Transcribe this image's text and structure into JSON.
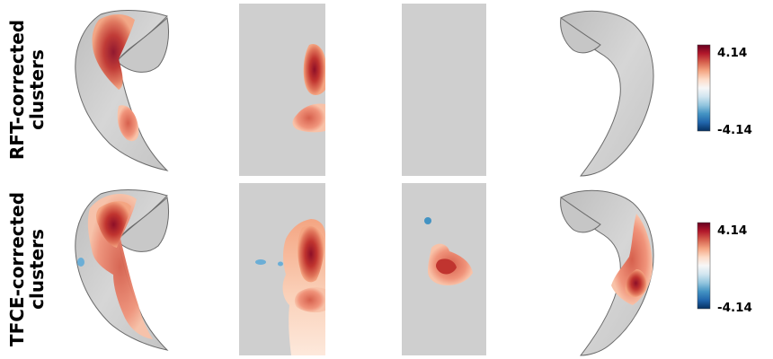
{
  "rows": [
    {
      "label_line1": "RFT-corrected",
      "label_line2": "clusters"
    },
    {
      "label_line1": "TFCE-corrected",
      "label_line2": "clusters"
    }
  ],
  "colorbars": [
    {
      "max_label": "4.14",
      "min_label": "-4.14"
    },
    {
      "max_label": "4.14",
      "min_label": "-4.14"
    }
  ],
  "colormap": {
    "name": "RdBu_r",
    "stops": [
      "#053061",
      "#2166ac",
      "#4393c3",
      "#92c5de",
      "#d1e5f0",
      "#f7f7f7",
      "#fddbc7",
      "#f4a582",
      "#d6604d",
      "#b2182b",
      "#67001f"
    ]
  },
  "surface_color": "#d2d2d2",
  "panel_background": "#cfcfcf"
}
